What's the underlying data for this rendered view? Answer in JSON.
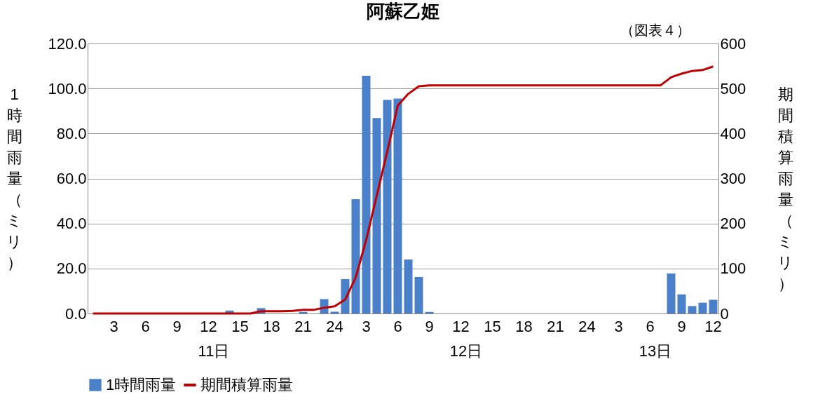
{
  "chart_data": {
    "type": "bar",
    "title": "阿蘇乙姫",
    "categories": [
      null,
      null,
      "3",
      null,
      null,
      "6",
      null,
      null,
      "9",
      null,
      null,
      "12",
      null,
      null,
      "15",
      null,
      null,
      "18",
      null,
      null,
      "21",
      null,
      null,
      "24",
      null,
      null,
      "3",
      null,
      null,
      "6",
      null,
      null,
      "9",
      null,
      null,
      "12",
      null,
      null,
      "15",
      null,
      null,
      "18",
      null,
      null,
      "21",
      null,
      null,
      "24",
      null,
      null,
      "3",
      null,
      null,
      "6",
      null,
      null,
      "9",
      null,
      null,
      "12"
    ],
    "series": [
      {
        "name": "1時間雨量",
        "color": "#4a7fc9",
        "values": [
          0,
          0,
          0,
          0,
          0,
          0,
          0,
          0,
          0,
          0,
          0,
          0,
          0,
          1.3,
          0,
          0,
          2.4,
          0,
          0,
          0,
          0.7,
          0,
          6.4,
          0.8,
          15.3,
          50.8,
          105.7,
          86.9,
          94.9,
          95.5,
          24.0,
          16.2,
          0.7,
          0,
          0,
          0,
          0,
          0,
          0,
          0,
          0,
          0,
          0,
          0,
          0,
          0,
          0,
          0,
          0,
          0,
          0,
          0,
          0,
          0,
          0,
          17.8,
          8.5,
          3.3,
          4.8,
          6.1
        ]
      },
      {
        "name": "期間積算雨量",
        "type": "line",
        "axis": "y2",
        "color": "#c00000",
        "values": [
          0,
          0,
          0,
          0,
          0,
          0,
          0,
          0,
          0,
          0,
          0,
          0,
          0,
          0,
          0,
          0,
          5,
          5,
          5,
          6,
          8,
          8,
          13,
          16,
          31,
          80,
          164,
          262,
          360,
          462,
          488,
          505,
          507,
          507,
          507,
          507,
          507,
          507,
          507,
          507,
          507,
          507,
          507,
          507,
          507,
          507,
          507,
          507,
          507,
          507,
          507,
          507,
          507,
          507,
          507,
          525,
          533,
          539,
          541,
          549
        ]
      }
    ],
    "ylabel": "1時間雨量（ミリ）",
    "y2label": "期間積算雨量（ミリ）",
    "ylim": [
      0,
      120
    ],
    "yticks": [
      {
        "value": 0,
        "label": "0.0"
      },
      {
        "value": 20,
        "label": "20.0"
      },
      {
        "value": 40,
        "label": "40.0"
      },
      {
        "value": 60,
        "label": "60.0"
      },
      {
        "value": 80,
        "label": "80.0"
      },
      {
        "value": 100,
        "label": "100.0"
      },
      {
        "value": 120,
        "label": "120.0"
      }
    ],
    "y2lim": [
      0,
      600
    ],
    "y2ticks": [
      0,
      100,
      200,
      300,
      400,
      500,
      600
    ],
    "annotations": [
      "（図表４）",
      "11日",
      "12日",
      "13日"
    ],
    "grid": "y",
    "legend": "bottom"
  }
}
